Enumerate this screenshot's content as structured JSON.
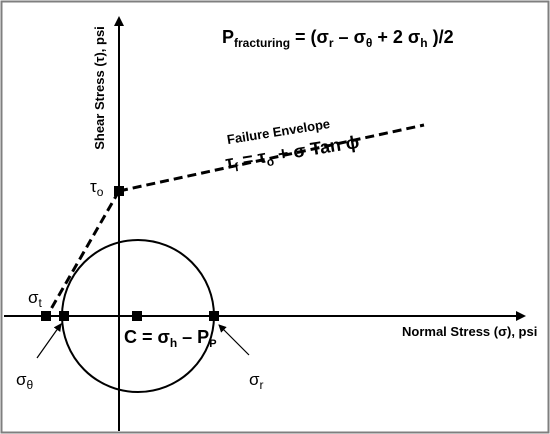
{
  "equation": {
    "lhs_main": "P",
    "lhs_sub": "fracturing",
    "rhs": {
      "open": " = (",
      "sigma": "σ",
      "sub_r": "r",
      "minus": " – ",
      "sub_theta": "θ",
      "plus2": " + 2 ",
      "sub_h": "h",
      "close": " )/2"
    }
  },
  "axes": {
    "y_label": "Shear Stress (τ), psi",
    "x_label": "Normal Stress (σ), psi"
  },
  "failure_envelope": {
    "label": "Failure Envelope",
    "formula": {
      "tau": "τ",
      "sub_f": "f",
      "eq": " = ",
      "tau2": "τ",
      "sub_o": "o",
      "rest": " + σ Tan ϕ"
    }
  },
  "points": {
    "tau_o": {
      "main": "τ",
      "sub": "o"
    },
    "sigma_t": {
      "main": "σ",
      "sub": "t"
    },
    "sigma_theta": {
      "main": "σ",
      "sub": "θ"
    },
    "sigma_r": {
      "main": "σ",
      "sub": "r"
    },
    "center": {
      "prefix": "C = σ",
      "sub_h": "h",
      "mid": " – P",
      "sub_p": "P"
    }
  },
  "colors": {
    "line": "#000000",
    "background": "#ffffff",
    "border": "#7f7f7f"
  }
}
